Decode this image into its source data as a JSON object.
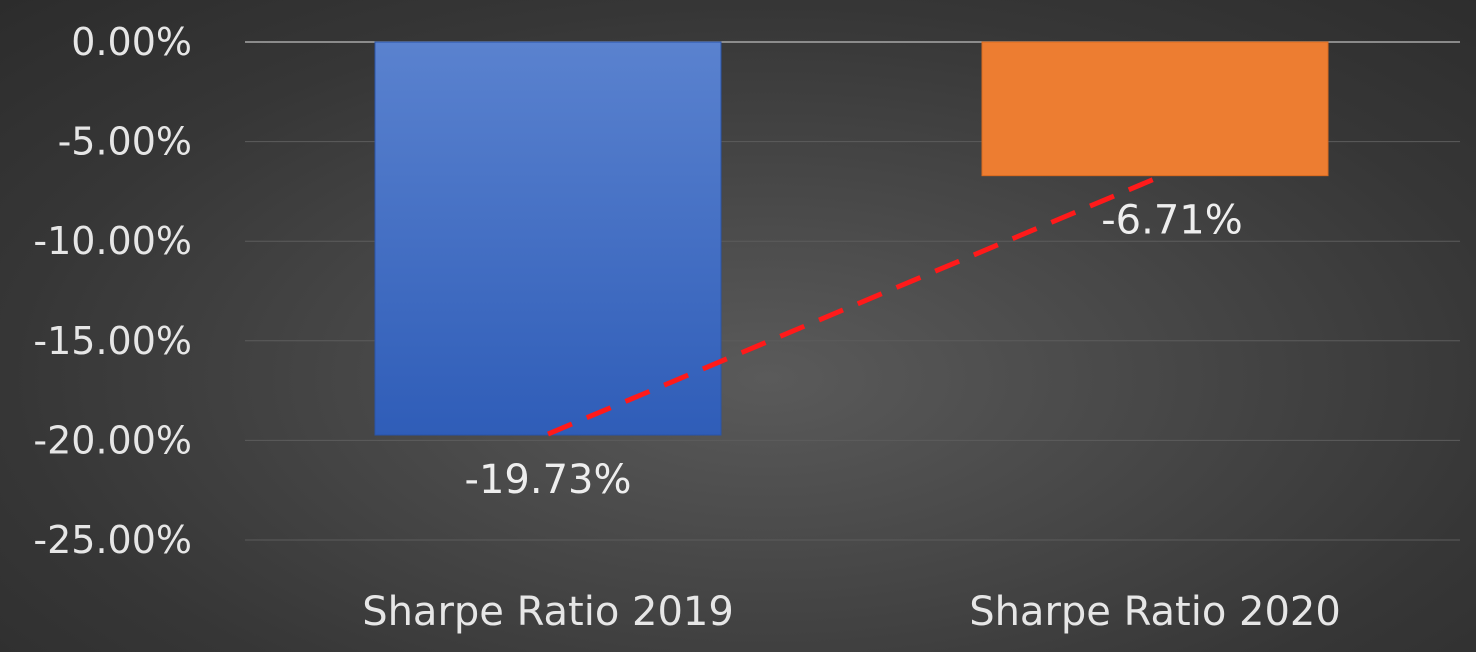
{
  "chart_data": {
    "type": "bar",
    "categories": [
      "Sharpe Ratio 2019",
      "Sharpe Ratio 2020"
    ],
    "values": [
      -19.73,
      -6.71
    ],
    "data_labels": [
      "-19.73%",
      "-6.71%"
    ],
    "title": "",
    "xlabel": "",
    "ylabel": "",
    "ylim": [
      -25,
      0
    ],
    "y_ticks": [
      0,
      -5,
      -10,
      -15,
      -20,
      -25
    ],
    "y_tick_labels": [
      "0.00%",
      "-5.00%",
      "-10.00%",
      "-15.00%",
      "-20.00%",
      "-25.00%"
    ],
    "grid": true,
    "legend": "none",
    "colors": [
      "#4472c4",
      "#ed7d31"
    ],
    "trend_line": {
      "style": "dashed",
      "color": "#ff1a1a",
      "connects": "bar ends"
    }
  }
}
